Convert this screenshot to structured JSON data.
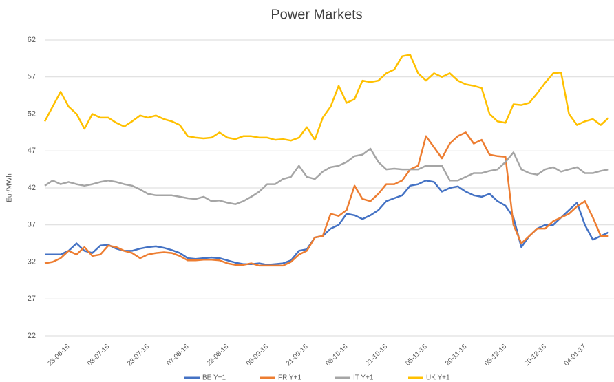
{
  "chart_data": {
    "type": "line",
    "title": "Power Markets",
    "y_label": "Eur/MWh",
    "categories": [
      null,
      null,
      null,
      "23-06-16",
      null,
      null,
      null,
      null,
      "08-07-16",
      null,
      null,
      null,
      null,
      "23-07-16",
      null,
      null,
      null,
      null,
      "07-08-16",
      null,
      null,
      null,
      null,
      "22-08-16",
      null,
      null,
      null,
      null,
      "06-09-16",
      null,
      null,
      null,
      null,
      "21-09-16",
      null,
      null,
      null,
      null,
      "06-10-16",
      null,
      null,
      null,
      null,
      "21-10-16",
      null,
      null,
      null,
      null,
      "05-11-16",
      null,
      null,
      null,
      null,
      "20-11-16",
      null,
      null,
      null,
      null,
      "05-12-16",
      null,
      null,
      null,
      null,
      "20-12-16",
      null,
      null,
      null,
      null,
      "04-01-17",
      null,
      null,
      null
    ],
    "series": [
      {
        "name": "BE Y+1",
        "color": "#4472c4",
        "values": [
          33,
          33,
          33,
          33.5,
          34.5,
          33.5,
          33.2,
          34.2,
          34.3,
          33.8,
          33.5,
          33.5,
          33.8,
          34,
          34.1,
          33.9,
          33.6,
          33.2,
          32.5,
          32.4,
          32.5,
          32.6,
          32.5,
          32.2,
          31.9,
          31.7,
          31.7,
          31.8,
          31.6,
          31.7,
          31.8,
          32.2,
          33.5,
          33.7,
          35.3,
          35.5,
          36.5,
          37,
          38.5,
          38.3,
          37.8,
          38.3,
          39,
          40.2,
          40.6,
          41,
          42.3,
          42.5,
          43,
          42.8,
          41.5,
          42,
          42.2,
          41.5,
          41,
          40.8,
          41.2,
          40.2,
          39.6,
          38,
          34,
          35.5,
          36.5,
          37,
          37,
          38,
          39,
          40,
          37,
          35,
          35.5,
          36
        ]
      },
      {
        "name": "FR Y+1",
        "color": "#ed7d31",
        "values": [
          31.8,
          32,
          32.5,
          33.5,
          33,
          34,
          32.8,
          33,
          34.2,
          34,
          33.5,
          33.2,
          32.5,
          33,
          33.2,
          33.3,
          33.2,
          32.8,
          32.2,
          32.2,
          32.3,
          32.3,
          32.2,
          31.8,
          31.6,
          31.6,
          31.8,
          31.5,
          31.5,
          31.5,
          31.5,
          32,
          33,
          33.5,
          35.3,
          35.5,
          38.5,
          38.2,
          39,
          42.3,
          40.5,
          40.2,
          41.2,
          42.5,
          42.5,
          43,
          44.5,
          45,
          49,
          47.5,
          46,
          48,
          49,
          49.5,
          48,
          48.5,
          46.5,
          46.3,
          46.2,
          37,
          34.5,
          35.5,
          36.5,
          36.5,
          37.5,
          38,
          38.5,
          39.5,
          40.2,
          38,
          35.5,
          35.5
        ]
      },
      {
        "name": "IT Y+1",
        "color": "#a5a5a5",
        "values": [
          42.3,
          43,
          42.5,
          42.8,
          42.5,
          42.3,
          42.5,
          42.8,
          43,
          42.8,
          42.5,
          42.3,
          41.8,
          41.2,
          41,
          41,
          41,
          40.8,
          40.6,
          40.5,
          40.8,
          40.2,
          40.3,
          40,
          39.8,
          40.2,
          40.8,
          41.5,
          42.5,
          42.5,
          43.2,
          43.5,
          45,
          43.5,
          43.2,
          44.2,
          44.8,
          45,
          45.5,
          46.3,
          46.5,
          47.3,
          45.5,
          44.5,
          44.6,
          44.5,
          44.5,
          44.5,
          45,
          45,
          45,
          43,
          43,
          43.5,
          44,
          44,
          44.3,
          44.5,
          45.5,
          46.8,
          44.5,
          44,
          43.8,
          44.5,
          44.8,
          44.2,
          44.5,
          44.8,
          44,
          44,
          44.3,
          44.5
        ]
      },
      {
        "name": "UK Y+1",
        "color": "#ffc000",
        "values": [
          51,
          53,
          55,
          53,
          52,
          50,
          52,
          51.5,
          51.5,
          50.8,
          50.3,
          51,
          51.8,
          51.5,
          51.8,
          51.3,
          51,
          50.5,
          49,
          48.8,
          48.7,
          48.8,
          49.5,
          48.8,
          48.6,
          49,
          49,
          48.8,
          48.8,
          48.5,
          48.6,
          48.4,
          48.8,
          50.2,
          48.5,
          51.5,
          53,
          55.8,
          53.5,
          54,
          56.5,
          56.3,
          56.5,
          57.5,
          58,
          59.8,
          60,
          57.5,
          56.5,
          57.5,
          57,
          57.5,
          56.5,
          56,
          55.8,
          55.5,
          52,
          51,
          50.8,
          53.3,
          53.2,
          53.5,
          54.8,
          56.2,
          57.5,
          57.6,
          52,
          50.5,
          51,
          51.3,
          50.5,
          51.5
        ]
      }
    ],
    "ylim": [
      22,
      62
    ],
    "yticks": [
      22,
      27,
      32,
      37,
      42,
      47,
      52,
      57,
      62
    ],
    "grid": true,
    "legend": "bottom"
  }
}
